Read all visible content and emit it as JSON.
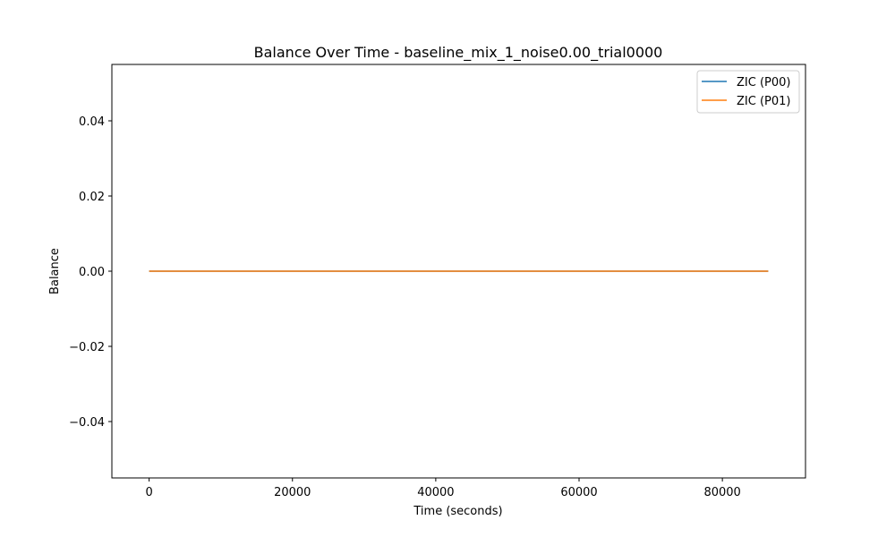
{
  "chart_data": {
    "type": "line",
    "title": "Balance Over Time - baseline_mix_1_noise0.00_trial0000",
    "xlabel": "Time (seconds)",
    "ylabel": "Balance",
    "xlim": [
      -5200,
      91600
    ],
    "ylim": [
      -0.055,
      0.055
    ],
    "xticks": [
      0,
      20000,
      40000,
      60000,
      80000
    ],
    "xtick_labels": [
      "0",
      "20000",
      "40000",
      "60000",
      "80000"
    ],
    "yticks": [
      0.04,
      0.02,
      0.0,
      -0.02,
      -0.04
    ],
    "ytick_labels": [
      "0.04",
      "0.02",
      "0.00",
      "−0.02",
      "−0.04"
    ],
    "grid": false,
    "legend_position": "upper-right",
    "series": [
      {
        "name": "ZIC (P00)",
        "color": "#1f77b4",
        "x": [
          0,
          86400
        ],
        "y": [
          0.0,
          0.0
        ]
      },
      {
        "name": "ZIC (P01)",
        "color": "#ff7f0e",
        "x": [
          0,
          86400
        ],
        "y": [
          0.0,
          0.0
        ]
      }
    ]
  }
}
